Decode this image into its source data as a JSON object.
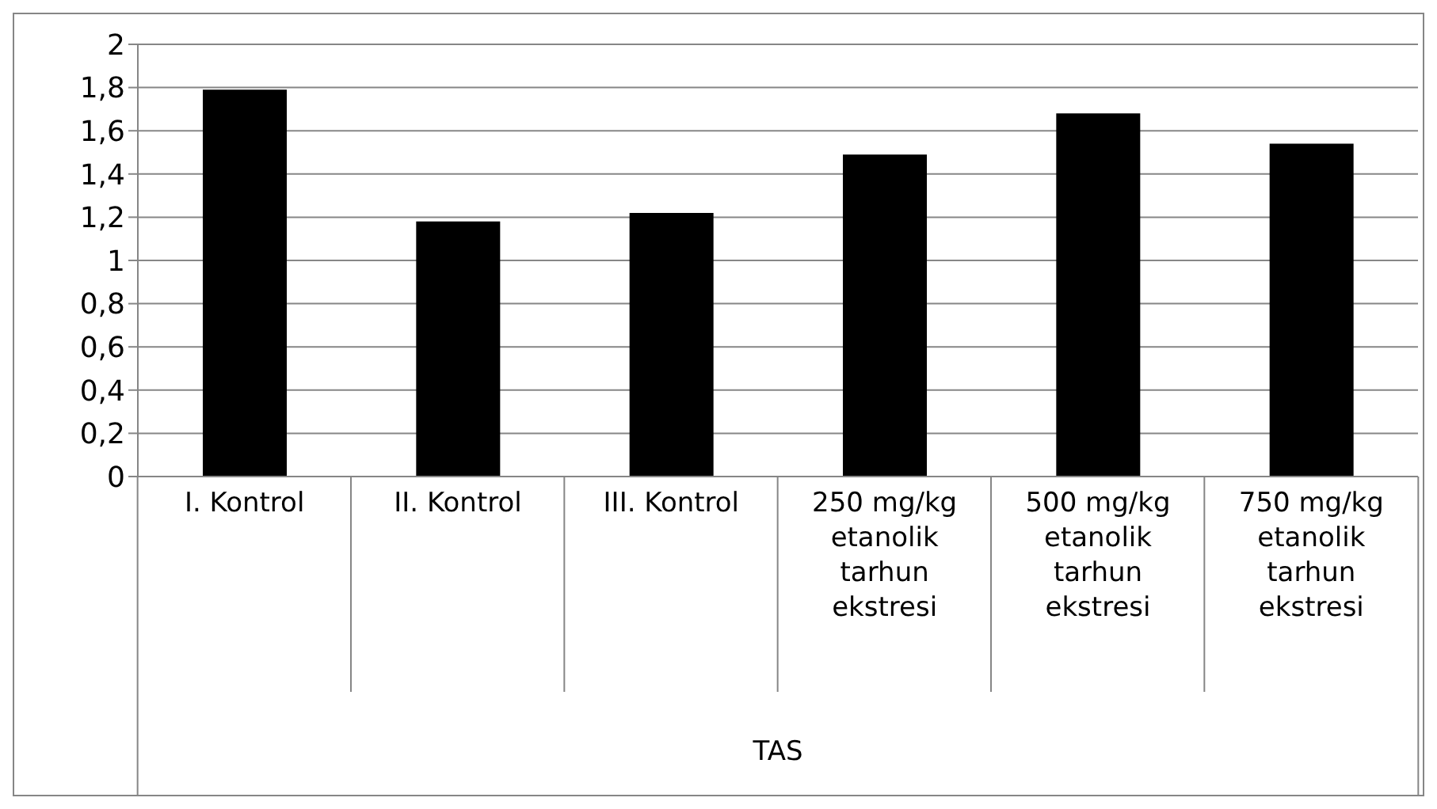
{
  "chart_data": {
    "type": "bar",
    "xlabel": "TAS",
    "categories": [
      "I. Kontrol",
      "II. Kontrol",
      "III. Kontrol",
      "250 mg/kg etanolik tarhun ekstresi",
      "500 mg/kg etanolik tarhun ekstresi",
      "750 mg/kg etanolik tarhun ekstresi"
    ],
    "values": [
      1.79,
      1.18,
      1.22,
      1.49,
      1.68,
      1.54
    ],
    "color": "#000000",
    "ylim": [
      0,
      2
    ],
    "yticks": [
      0,
      {
        "value": 0.2,
        "label": "0,2"
      },
      {
        "value": 0.4,
        "label": "0,4"
      },
      {
        "value": 0.6,
        "label": "0,6"
      },
      {
        "value": 0.8,
        "label": "0,8"
      },
      1,
      {
        "value": 1.2,
        "label": "1,2"
      },
      {
        "value": 1.4,
        "label": "1,4"
      },
      {
        "value": 1.6,
        "label": "1,6"
      },
      {
        "value": 1.8,
        "label": "1,8"
      },
      2
    ],
    "grid": "y",
    "legend": false
  }
}
